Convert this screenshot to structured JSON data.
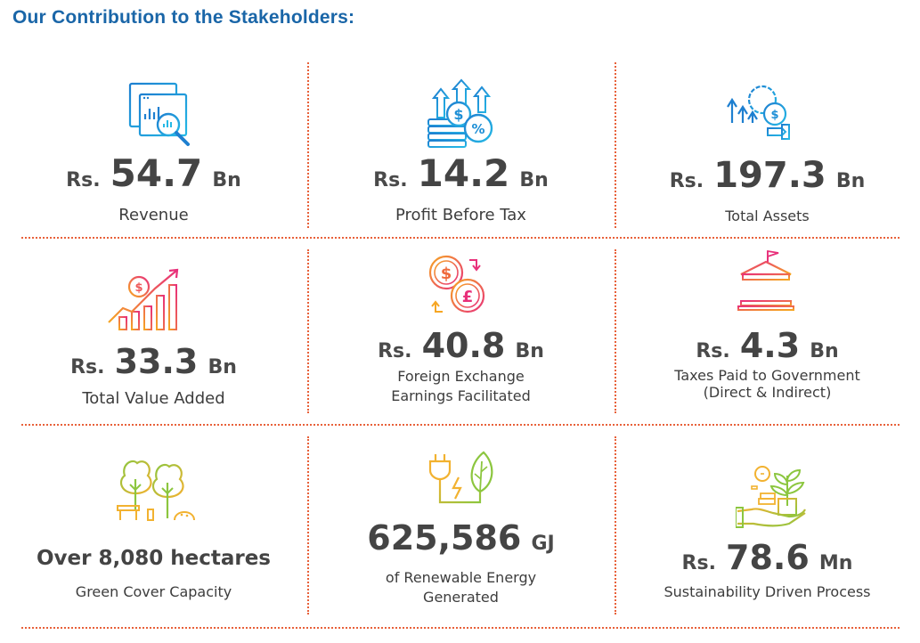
{
  "title": "Our Contribution to the Stakeholders:",
  "colors": {
    "title": "#1a66a8",
    "separator": "#e8613a",
    "blue_icons": "#1e8fd6",
    "warm_icons": "#ee4d7a",
    "green_icons": "#8cc63f"
  },
  "cards": [
    {
      "icon": "revenue-analytics-icon",
      "prefix": "Rs.",
      "number": "54.7",
      "unit": "Bn",
      "label": "Revenue"
    },
    {
      "icon": "profit-growth-icon",
      "prefix": "Rs.",
      "number": "14.2",
      "unit": "Bn",
      "label": "Profit Before Tax"
    },
    {
      "icon": "assets-growth-icon",
      "prefix": "Rs.",
      "number": "197.3",
      "unit": "Bn",
      "label": "Total Assets"
    },
    {
      "icon": "value-added-chart-icon",
      "prefix": "Rs.",
      "number": "33.3",
      "unit": "Bn",
      "label": "Total Value Added"
    },
    {
      "icon": "currency-exchange-icon",
      "prefix": "Rs.",
      "number": "40.8",
      "unit": "Bn",
      "label_line1": "Foreign Exchange",
      "label_line2": "Earnings Facilitated"
    },
    {
      "icon": "government-building-icon",
      "prefix": "Rs.",
      "number": "4.3",
      "unit": "Bn",
      "label_line1": "Taxes Paid to Government",
      "label_line2": "(Direct & Indirect)"
    },
    {
      "icon": "trees-park-icon",
      "value_text": "Over 8,080 hectares",
      "label": "Green Cover Capacity"
    },
    {
      "icon": "renewable-energy-plug-icon",
      "number": "625,586",
      "unit": "GJ",
      "label_line1": "of Renewable Energy",
      "label_line2": "Generated"
    },
    {
      "icon": "plant-in-hand-icon",
      "prefix": "Rs.",
      "number": "78.6",
      "unit": "Mn",
      "label": "Sustainability Driven Process"
    }
  ]
}
